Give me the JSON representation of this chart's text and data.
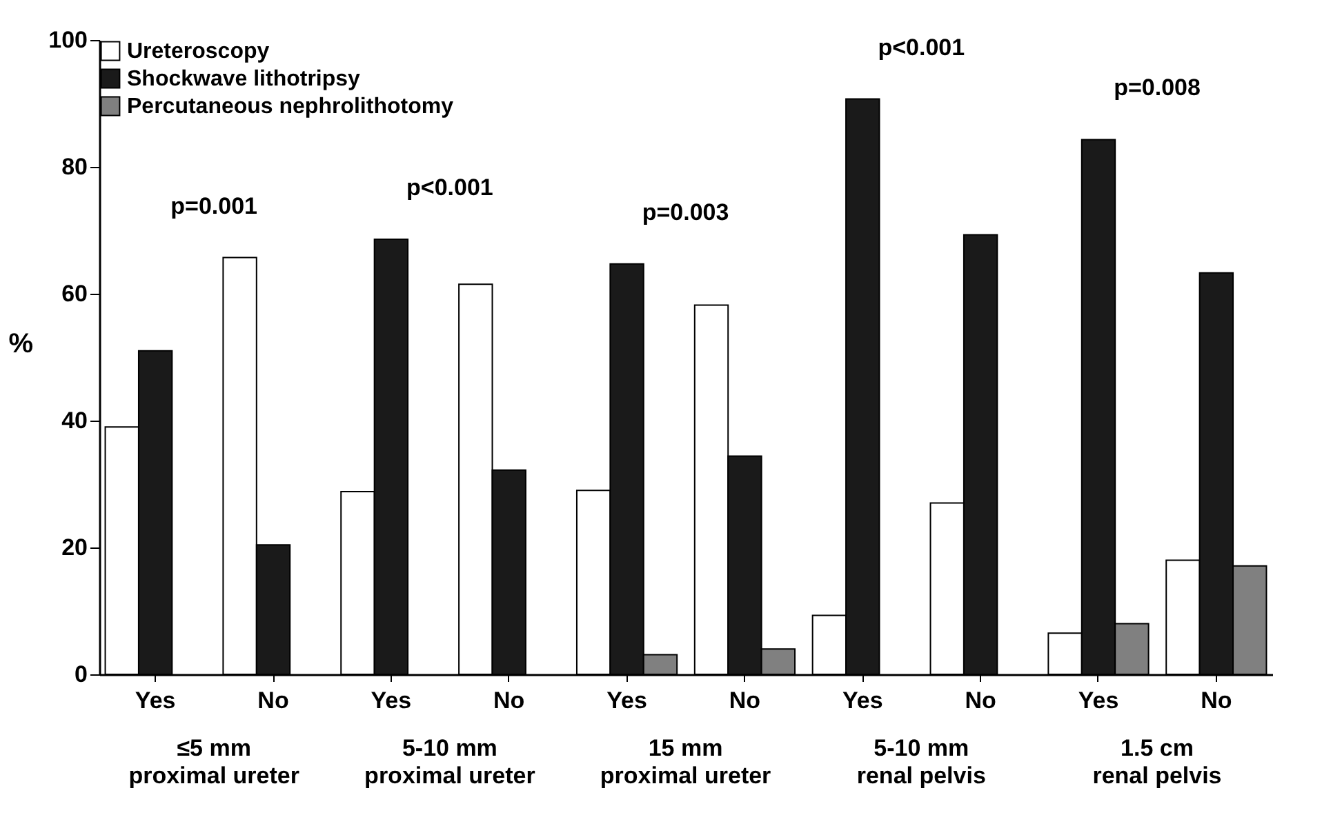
{
  "chart_data": {
    "type": "bar",
    "ylabel": "%",
    "categories": [
      "Yes",
      "No",
      "Yes",
      "No",
      "Yes",
      "No",
      "Yes",
      "No",
      "Yes",
      "No"
    ],
    "series": [
      {
        "name": "Ureteroscopy",
        "color": "#ffffff",
        "values": [
          39,
          65.7,
          28.8,
          61.5,
          29,
          58.2,
          9.3,
          27,
          6.5,
          18
        ]
      },
      {
        "name": "Shockwave lithotripsy",
        "color": "#1a1a1a",
        "values": [
          51,
          20.4,
          68.6,
          32.2,
          64.7,
          34.4,
          90.7,
          69.3,
          84.3,
          63.3
        ]
      },
      {
        "name": "Percutaneous nephrolithotomy",
        "color": "#808080",
        "values": [
          null,
          null,
          null,
          null,
          3.1,
          4,
          null,
          null,
          8,
          17.1
        ]
      }
    ],
    "ylim": [
      0,
      100
    ],
    "yticks": [
      0,
      20,
      40,
      60,
      80,
      100
    ],
    "grid": false,
    "legend": "top left",
    "annotations": [
      "p=0.001",
      "p<0.001",
      "p=0.003",
      "p<0.001",
      "p=0.008",
      "≤5 mm\nproximal ureter",
      "5-10 mm\nproximal ureter",
      "15 mm\nproximal ureter",
      "5-10 mm\nrenal pelvis",
      "1.5 cm\nrenal pelvis"
    ]
  }
}
